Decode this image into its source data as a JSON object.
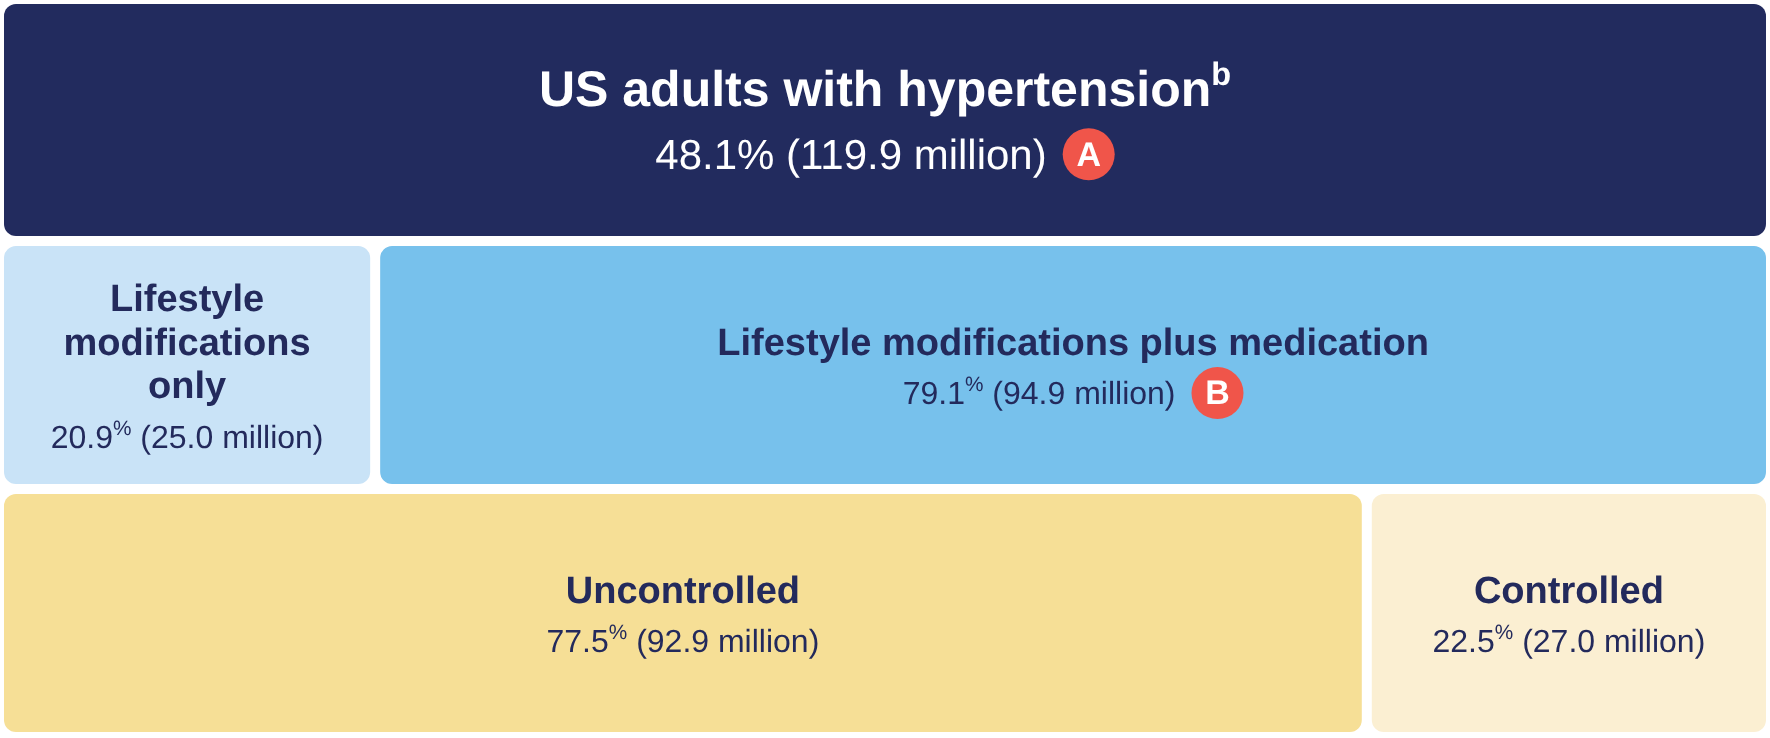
{
  "chart_data": {
    "type": "other",
    "categories": [
      "US adults with hypertension$^{b}$",
      "Lifestyle modifications only",
      "Lifestyle modifications plus medication",
      "Uncontrolled",
      "Controlled"
    ],
    "values": [
      48.1,
      20.9,
      79.1,
      77.5,
      22.5
    ],
    "value_labels": [
      "48.1% (119.9 million)",
      "20.9$^{%}$ (25.0 million)",
      "79.1$^{%}$ (94.9 million)",
      "77.5$^{%}$ (92.9 million)",
      "22.5$^{%}$ (27.0 million)"
    ],
    "colors": [
      "#222b5e",
      "#c9e3f7",
      "#77c1ec",
      "#f6df96",
      "#fbefd2"
    ],
    "annotations": [
      "A",
      "B"
    ]
  }
}
